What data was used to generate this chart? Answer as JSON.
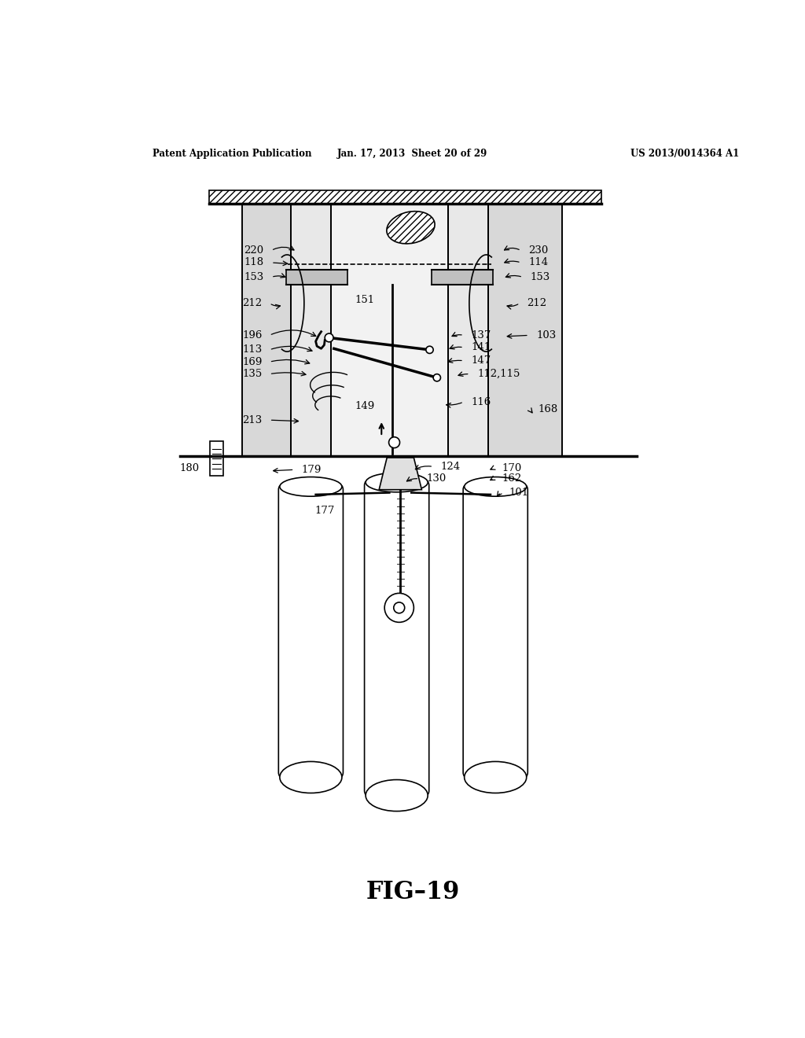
{
  "header_left": "Patent Application Publication",
  "header_center": "Jan. 17, 2013  Sheet 20 of 29",
  "header_right": "US 2013/0014364 A1",
  "fig_label": "FIG–19",
  "bg_color": "#ffffff",
  "lc": "#000000",
  "fig_w": 10.24,
  "fig_h": 13.2,
  "labels_left": [
    [
      "220",
      280,
      208
    ],
    [
      "118",
      280,
      228
    ],
    [
      "153",
      280,
      252
    ],
    [
      "212",
      278,
      295
    ],
    [
      "196",
      278,
      348
    ],
    [
      "113",
      278,
      372
    ],
    [
      "169",
      278,
      392
    ],
    [
      "135",
      278,
      412
    ],
    [
      "213",
      278,
      488
    ]
  ],
  "labels_right": [
    [
      "230",
      700,
      208
    ],
    [
      "114",
      700,
      228
    ],
    [
      "153",
      700,
      252
    ],
    [
      "212",
      700,
      295
    ],
    [
      "137",
      605,
      348
    ],
    [
      "103",
      710,
      348
    ],
    [
      "141",
      605,
      368
    ],
    [
      "147",
      605,
      390
    ],
    [
      "112,115",
      615,
      412
    ],
    [
      "116",
      605,
      458
    ],
    [
      "168",
      715,
      470
    ]
  ],
  "labels_center": [
    [
      "151",
      448,
      290
    ],
    [
      "149",
      448,
      465
    ]
  ],
  "labels_below": [
    [
      "124",
      555,
      565
    ],
    [
      "130",
      530,
      585
    ],
    [
      "170",
      655,
      568
    ],
    [
      "162",
      655,
      585
    ],
    [
      "101",
      668,
      608
    ],
    [
      "179",
      328,
      570
    ],
    [
      "177",
      348,
      635
    ],
    [
      "180",
      168,
      568
    ]
  ]
}
